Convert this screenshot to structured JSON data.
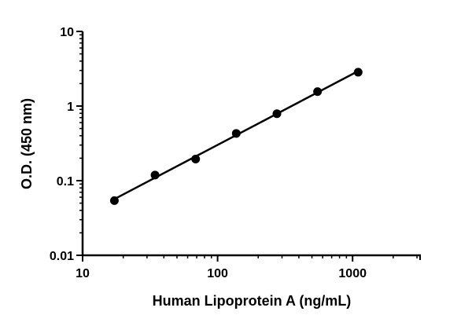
{
  "chart_data": {
    "type": "scatter",
    "title": "",
    "xlabel": "Human Lipoprotein A (ng/mL)",
    "ylabel": "O.D. (450 nm)",
    "x_scale": "log",
    "y_scale": "log",
    "xlim": [
      10,
      3162
    ],
    "ylim": [
      0.01,
      10
    ],
    "x_ticks": [
      "10",
      "100",
      "1000"
    ],
    "y_ticks": [
      "0.01",
      "0.1",
      "1",
      "10"
    ],
    "grid": false,
    "legend": "none",
    "series": [
      {
        "x": [
          17.2,
          34.4,
          68.75,
          137.5,
          275,
          550,
          1100
        ],
        "y": [
          0.054,
          0.119,
          0.195,
          0.43,
          0.79,
          1.56,
          2.84
        ],
        "marker": "filled-circle",
        "fit_line": true,
        "color": "#000000"
      }
    ]
  }
}
